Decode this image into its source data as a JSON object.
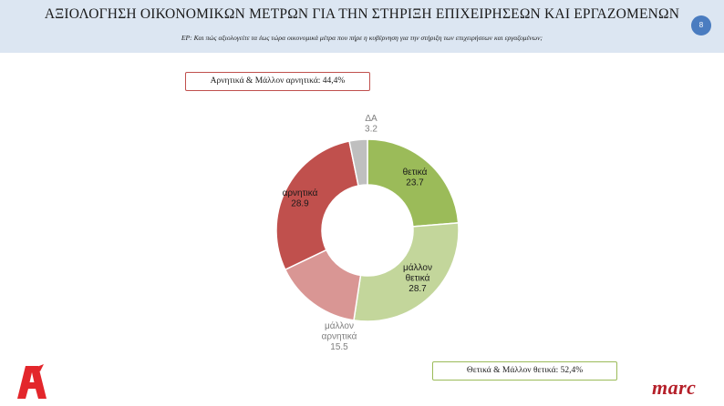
{
  "header": {
    "title": "ΑΞΙΟΛΟΓΗΣΗ ΟΙΚΟΝΟΜΙΚΩΝ ΜΕΤΡΩΝ ΓΙΑ ΤΗΝ ΣΤΗΡΙΞΗ ΕΠΙΧΕΙΡΗΣΕΩΝ ΚΑΙ ΕΡΓΑΖΟΜΕΝΩΝ",
    "question": "ΕΡ: Και πώς αξιολογείτε  τα έως τώρα οικονομικά μέτρα που πήρε η κυβέρνηση για την στήριξη των επιχειρήσεων και εργαζομένων;",
    "page_number": "8"
  },
  "callouts": {
    "negative_total": "Αρνητικά & Μάλλον αρνητικά: 44,4%",
    "positive_total": "Θετικά & Μάλλον θετικά: 52,4%"
  },
  "logos": {
    "alpha": "Α",
    "marc": "marc"
  },
  "chart_data": {
    "type": "pie",
    "donut": true,
    "title": "",
    "slices": [
      {
        "label": "θετικά",
        "value": 23.7,
        "display": "23.7",
        "color": "#9bbb59"
      },
      {
        "label": "μάλλον θετικά",
        "value": 28.7,
        "display": "28.7",
        "color": "#c3d69b"
      },
      {
        "label": "μάλλον αρνητικά",
        "value": 15.5,
        "display": "15.5",
        "color": "#d99694"
      },
      {
        "label": "αρνητικά",
        "value": 28.9,
        "display": "28.9",
        "color": "#c0504d"
      },
      {
        "label": "ΔΑ",
        "value": 3.2,
        "display": "3.2",
        "color": "#bfbfbf"
      }
    ]
  }
}
